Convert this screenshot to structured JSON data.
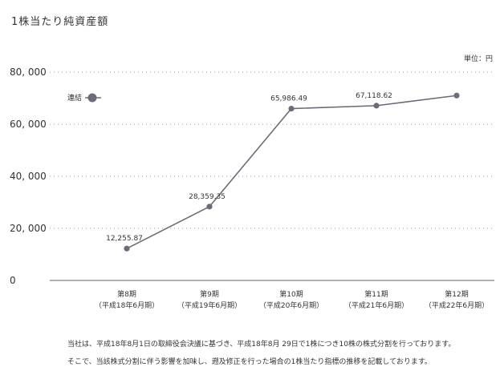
{
  "chart_data": {
    "type": "line",
    "title": "1株当たり純資産額",
    "unit": "単位：円",
    "categories": [
      [
        "第8期",
        "（平成18年6月期）"
      ],
      [
        "第9期",
        "（平成19年6月期）"
      ],
      [
        "第10期",
        "（平成20年6月期）"
      ],
      [
        "第11期",
        "（平成21年6月期）"
      ],
      [
        "第12期",
        "（平成22年6月期）"
      ]
    ],
    "series": [
      {
        "name": "連結",
        "values": [
          12255.87,
          28359.35,
          65986.49,
          67118.62,
          71000
        ],
        "labels": [
          "12,255.87",
          "28,359.35",
          "65,986.49",
          "67,118.62",
          ""
        ]
      }
    ],
    "yticks": [
      0,
      20000,
      40000,
      60000,
      80000
    ],
    "ytick_labels": [
      "0",
      "20, 000",
      "40, 000",
      "60, 000",
      "80, 000"
    ],
    "ylim": [
      0,
      80000
    ],
    "grid": true,
    "legend": "top-left",
    "color": "#6e6a78"
  },
  "notes": [
    "当社は、平成18年8月1日の取締役会決議に基づき、平成18年8月 29日で1株につき10株の株式分割を行っております。",
    "そこで、当該株式分割に伴う影響を加味し、遡及修正を行った場合の1株当たり指標の推移を記載しております。"
  ]
}
